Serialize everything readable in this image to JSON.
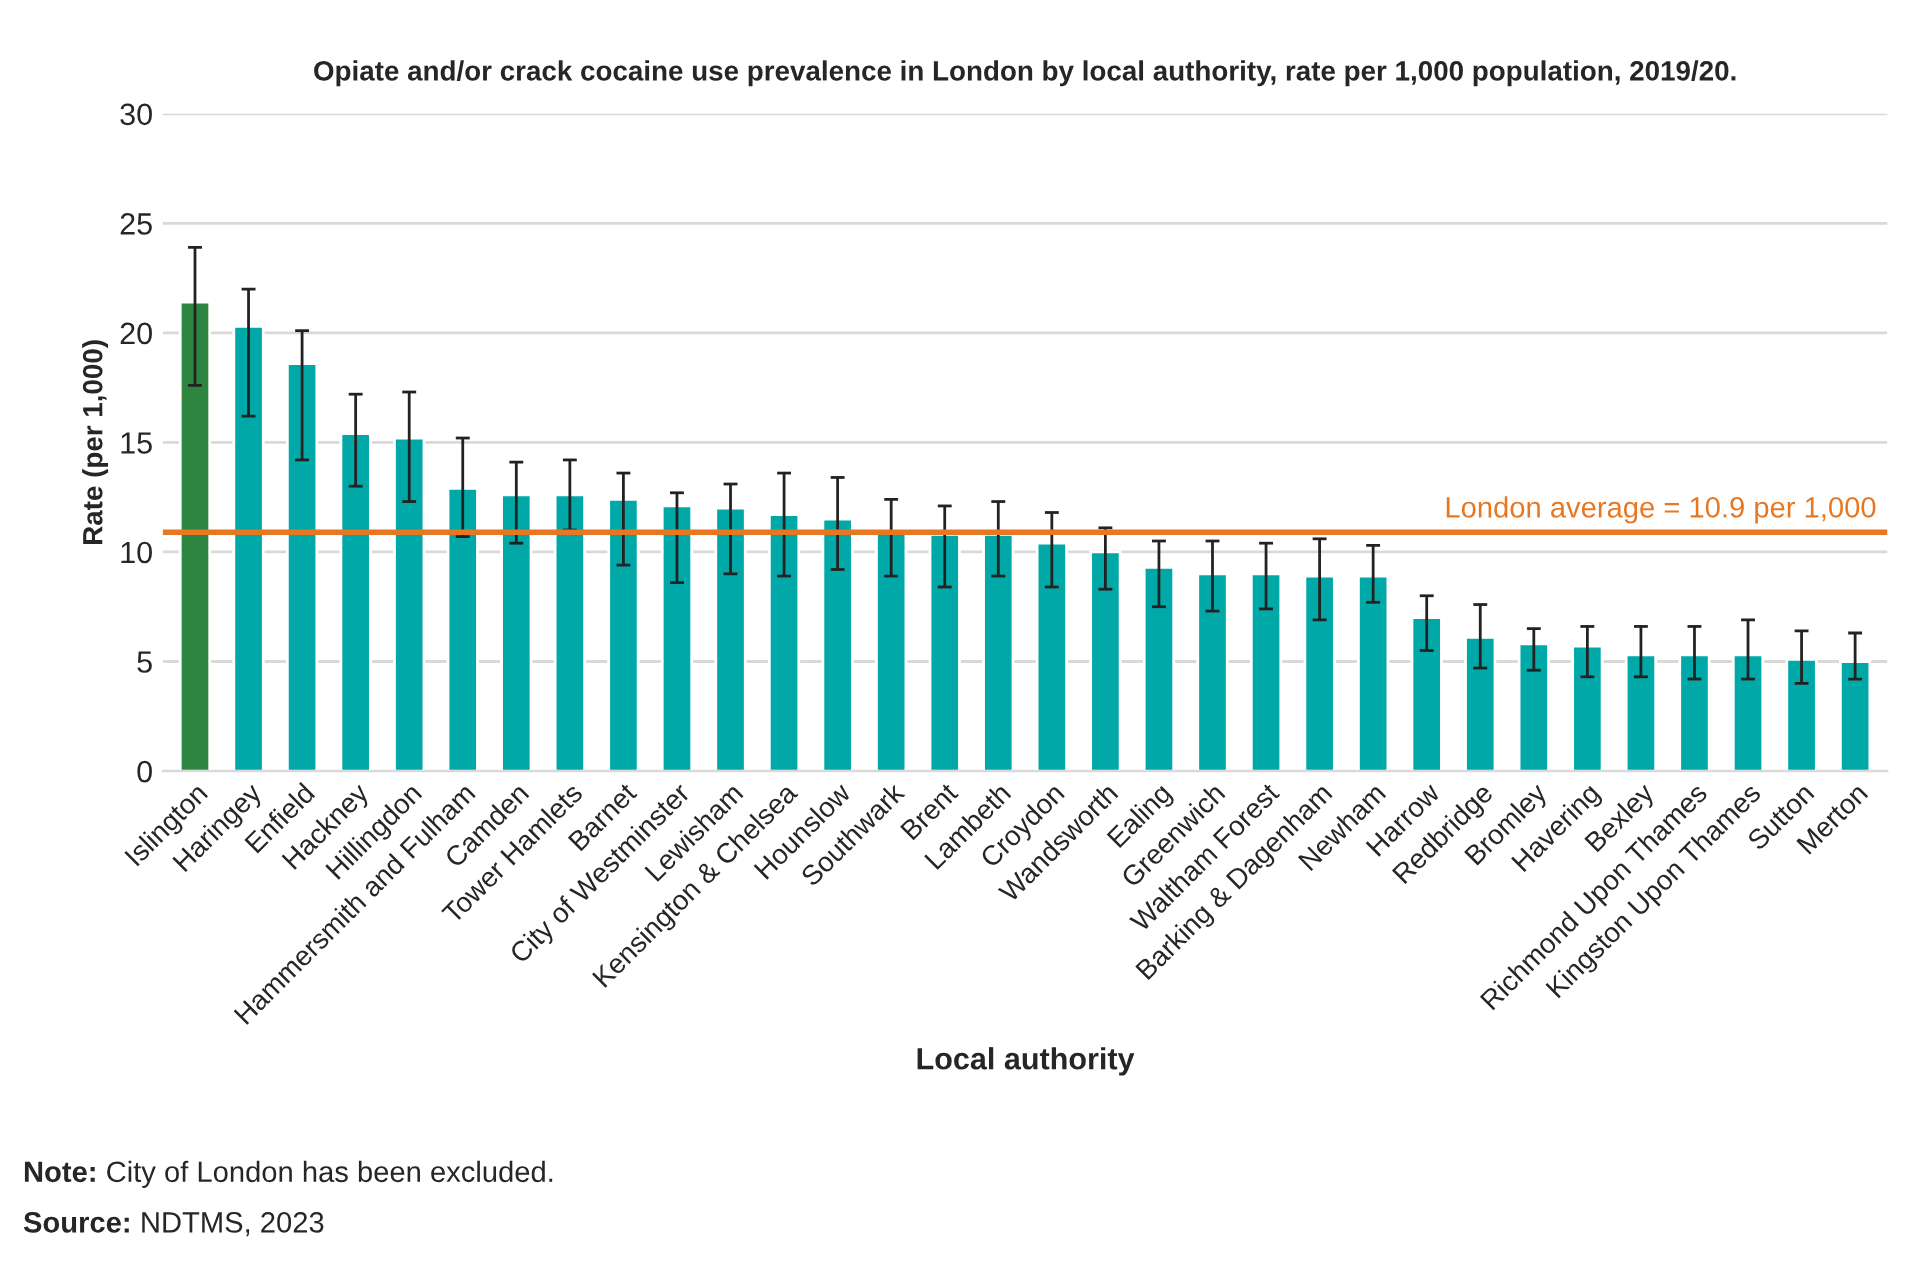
{
  "chart_data": {
    "type": "bar",
    "title": "Opiate and/or crack cocaine use prevalence in London by local authority, rate per 1,000 population, 2019/20.",
    "xlabel": "Local authority",
    "ylabel": "Rate (per 1,000)",
    "categories": [
      "Islington",
      "Haringey",
      "Enfield",
      "Hackney",
      "Hillingdon",
      "Hammersmith and Fulham",
      "Camden",
      "Tower Hamlets",
      "Barnet",
      "City of Westminster",
      "Lewisham",
      "Kensington & Chelsea",
      "Hounslow",
      "Southwark",
      "Brent",
      "Lambeth",
      "Croydon",
      "Wandsworth",
      "Ealing",
      "Greenwich",
      "Waltham Forest",
      "Barking & Dagenham",
      "Newham",
      "Harrow",
      "Redbridge",
      "Bromley",
      "Havering",
      "Bexley",
      "Richmond Upon Thames",
      "Kingston Upon Thames",
      "Sutton",
      "Merton"
    ],
    "values": [
      21.4,
      20.3,
      18.6,
      15.4,
      15.2,
      12.9,
      12.6,
      12.6,
      12.4,
      12.1,
      12.0,
      11.7,
      11.5,
      10.9,
      10.8,
      10.8,
      10.4,
      10.0,
      9.3,
      9.0,
      9.0,
      8.9,
      8.9,
      7.0,
      6.1,
      5.8,
      5.7,
      5.3,
      5.3,
      5.3,
      5.1,
      5.0
    ],
    "errors": [
      [
        17.6,
        23.9
      ],
      [
        16.2,
        22.0
      ],
      [
        14.2,
        20.1
      ],
      [
        13.0,
        17.2
      ],
      [
        12.3,
        17.3
      ],
      [
        10.7,
        15.2
      ],
      [
        10.4,
        14.1
      ],
      [
        11.0,
        14.2
      ],
      [
        9.4,
        13.6
      ],
      [
        8.6,
        12.7
      ],
      [
        9.0,
        13.1
      ],
      [
        8.9,
        13.6
      ],
      [
        9.2,
        13.4
      ],
      [
        8.9,
        12.4
      ],
      [
        8.4,
        12.1
      ],
      [
        8.9,
        12.3
      ],
      [
        8.4,
        11.8
      ],
      [
        8.3,
        11.1
      ],
      [
        7.5,
        10.5
      ],
      [
        7.3,
        10.5
      ],
      [
        7.4,
        10.4
      ],
      [
        6.9,
        10.6
      ],
      [
        7.7,
        10.3
      ],
      [
        5.5,
        8.0
      ],
      [
        4.7,
        7.6
      ],
      [
        4.6,
        6.5
      ],
      [
        4.3,
        6.6
      ],
      [
        4.3,
        6.6
      ],
      [
        4.2,
        6.6
      ],
      [
        4.2,
        6.9
      ],
      [
        4.0,
        6.4
      ],
      [
        4.2,
        6.3
      ]
    ],
    "colors": [
      "#2e8540",
      "#00a8a8",
      "#00a8a8",
      "#00a8a8",
      "#00a8a8",
      "#00a8a8",
      "#00a8a8",
      "#00a8a8",
      "#00a8a8",
      "#00a8a8",
      "#00a8a8",
      "#00a8a8",
      "#00a8a8",
      "#00a8a8",
      "#00a8a8",
      "#00a8a8",
      "#00a8a8",
      "#00a8a8",
      "#00a8a8",
      "#00a8a8",
      "#00a8a8",
      "#00a8a8",
      "#00a8a8",
      "#00a8a8",
      "#00a8a8",
      "#00a8a8",
      "#00a8a8",
      "#00a8a8",
      "#00a8a8",
      "#00a8a8",
      "#00a8a8",
      "#00a8a8"
    ],
    "ylim": [
      0,
      30
    ],
    "yticks": [
      0,
      5,
      10,
      15,
      20,
      25,
      30
    ],
    "grid": "y",
    "ref_lines": [
      {
        "axis": "y",
        "value": 10.9,
        "label": "London average = 10.9 per 1,000",
        "color": "#e87722"
      }
    ],
    "annotations": [
      "Note: City of London has been excluded.",
      "Source: NDTMS, 2023"
    ]
  }
}
